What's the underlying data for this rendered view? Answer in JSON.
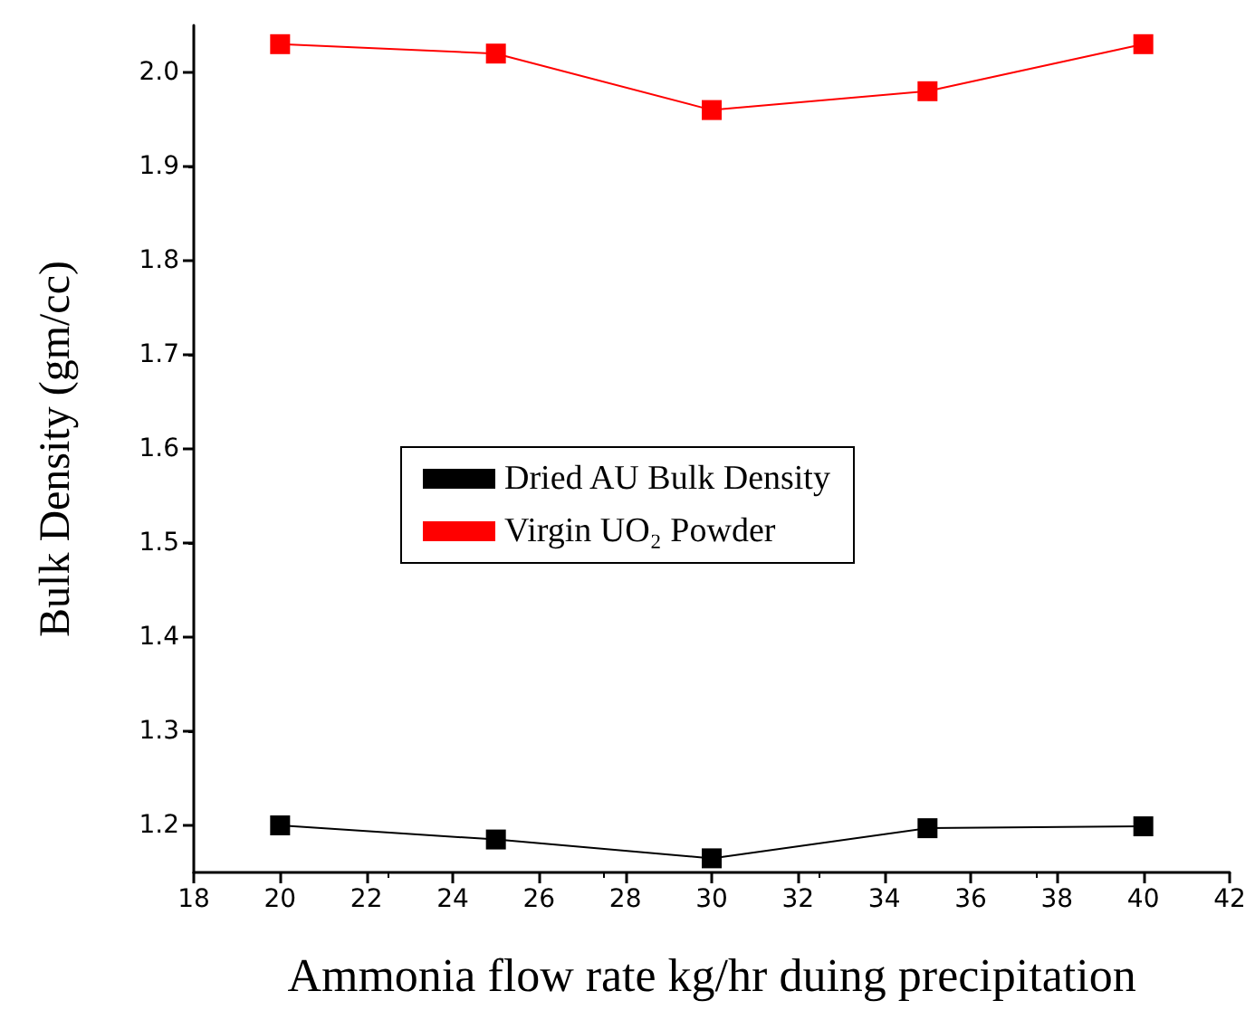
{
  "chart_data": {
    "type": "line",
    "xlabel": "Ammonia flow rate kg/hr duing precipitation",
    "ylabel": "Bulk Density (gm/cc)",
    "x": [
      20,
      25,
      30,
      35,
      40
    ],
    "series": [
      {
        "name": "Dried AU Bulk Density",
        "color": "#000000",
        "values": [
          1.2,
          1.185,
          1.165,
          1.197,
          1.199
        ]
      },
      {
        "name": "Virgin UO₂ Powder",
        "color": "#ff0000",
        "values": [
          2.03,
          2.02,
          1.96,
          1.98,
          2.03
        ]
      }
    ],
    "xlim": [
      18,
      42
    ],
    "xticks": [
      18,
      20,
      22,
      24,
      26,
      28,
      30,
      32,
      34,
      36,
      38,
      40,
      42
    ],
    "ylim": [
      1.15,
      2.05
    ],
    "yticks": [
      {
        "value": 1.2,
        "label": "1.2"
      },
      {
        "value": 1.3,
        "label": "1.3"
      },
      {
        "value": 1.4,
        "label": "1.4"
      },
      {
        "value": 1.5,
        "label": "1.5"
      },
      {
        "value": 1.6,
        "label": "1.6"
      },
      {
        "value": 1.7,
        "label": "1.7"
      },
      {
        "value": 1.8,
        "label": "1.8"
      },
      {
        "value": 1.9,
        "label": "1.9"
      },
      {
        "value": 2.0,
        "label": "2.0"
      }
    ],
    "grid": false,
    "legend": "center",
    "marker": "square",
    "line_style": "solid"
  }
}
